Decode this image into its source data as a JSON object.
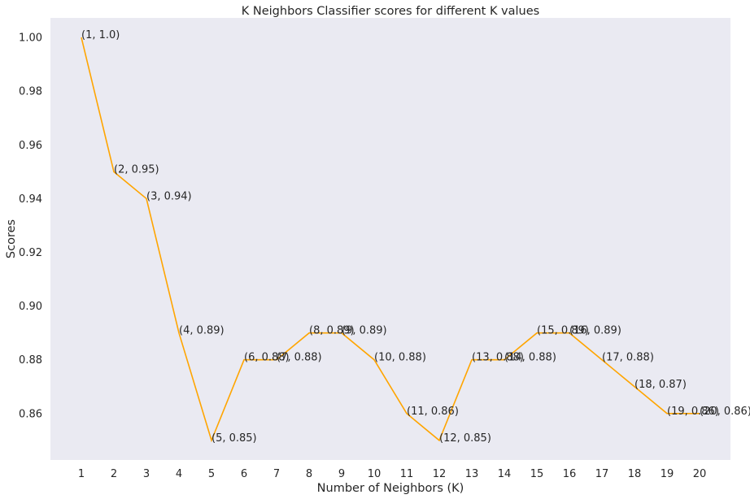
{
  "chart_data": {
    "type": "line",
    "title": "K Neighbors Classifier scores for different K values",
    "xlabel": "Number of Neighbors (K)",
    "ylabel": "Scores",
    "x": [
      1,
      2,
      3,
      4,
      5,
      6,
      7,
      8,
      9,
      10,
      11,
      12,
      13,
      14,
      15,
      16,
      17,
      18,
      19,
      20
    ],
    "x_tick_labels": [
      "1",
      "2",
      "3",
      "4",
      "5",
      "6",
      "7",
      "8",
      "9",
      "10",
      "11",
      "12",
      "13",
      "14",
      "15",
      "16",
      "17",
      "18",
      "19",
      "20"
    ],
    "y_ticks": [
      0.86,
      0.88,
      0.9,
      0.92,
      0.94,
      0.96,
      0.98,
      1.0
    ],
    "y_tick_labels": [
      "0.86",
      "0.88",
      "0.90",
      "0.92",
      "0.94",
      "0.96",
      "0.98",
      "1.00"
    ],
    "ylim": [
      0.8427,
      1.0073
    ],
    "xlim": [
      0.05,
      20.95
    ],
    "grid": false,
    "colors": {
      "line": "#ffa500",
      "background": "#eaeaf2"
    },
    "series": [
      {
        "values": [
          1.0,
          0.95,
          0.94,
          0.89,
          0.85,
          0.88,
          0.88,
          0.89,
          0.89,
          0.88,
          0.86,
          0.85,
          0.88,
          0.88,
          0.89,
          0.89,
          0.88,
          0.87,
          0.86,
          0.86
        ],
        "labels": [
          "(1, 1.0)",
          "(2, 0.95)",
          "(3, 0.94)",
          "(4, 0.89)",
          "(5, 0.85)",
          "(6, 0.88)",
          "(7, 0.88)",
          "(8, 0.89)",
          "(9, 0.89)",
          "(10, 0.88)",
          "(11, 0.86)",
          "(12, 0.85)",
          "(13, 0.88)",
          "(14, 0.88)",
          "(15, 0.89)",
          "(16, 0.89)",
          "(17, 0.88)",
          "(18, 0.87)",
          "(19, 0.86)",
          "(20, 0.86)"
        ]
      }
    ]
  }
}
